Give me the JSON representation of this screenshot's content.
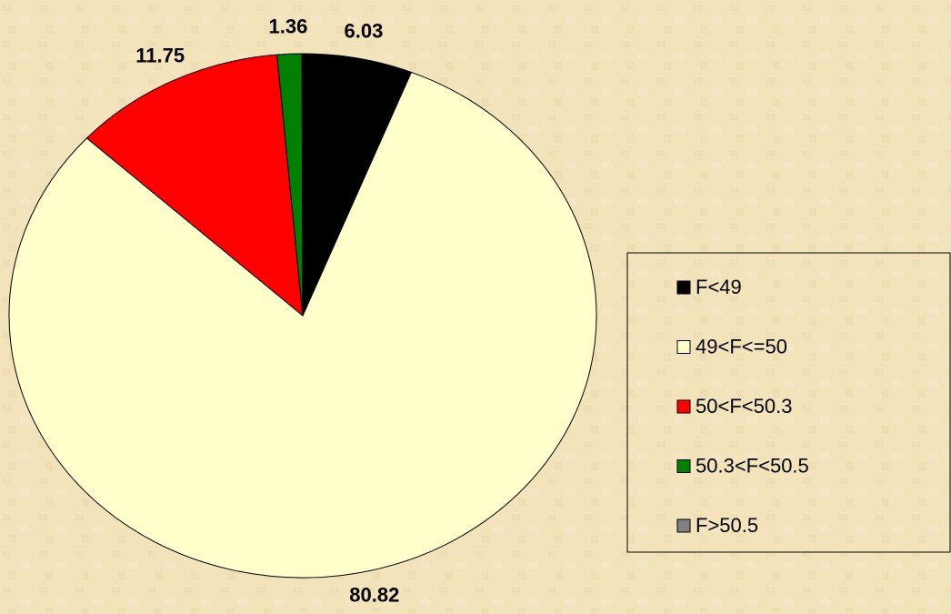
{
  "chart_data": {
    "type": "pie",
    "categories": [
      "F<49",
      "49<F<=50",
      "50<F<50.3",
      "50.3<F<50.5",
      "F>50.5"
    ],
    "values": [
      6.03,
      80.82,
      11.75,
      1.36,
      0.04
    ],
    "value_labels": [
      "6.03",
      "80.82",
      "11.75",
      "1.36",
      null
    ],
    "colors": [
      "#000000",
      "#ffffcc",
      "#ff0000",
      "#008000",
      "#808080"
    ],
    "legend": "right"
  }
}
